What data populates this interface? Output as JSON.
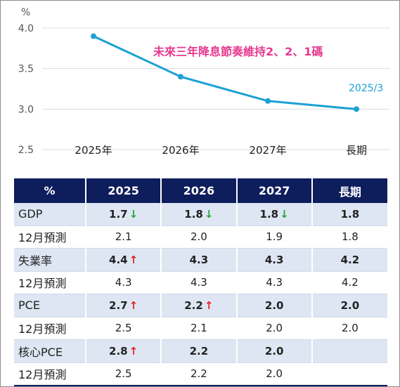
{
  "chart_data": {
    "type": "line",
    "ylabel": "%",
    "ylim": [
      2.5,
      4.0
    ],
    "yticks": [
      "4.0",
      "3.5",
      "3.0",
      "2.5"
    ],
    "categories": [
      "2025年",
      "2026年",
      "2027年",
      "長期"
    ],
    "series": [
      {
        "values": [
          3.9,
          3.4,
          3.1,
          3.0
        ]
      }
    ],
    "annotation": "未來三年降息節奏維持2、2、1碼",
    "end_label": "2025/3",
    "colors": {
      "line": "#1ba1d3",
      "grid": "#dddddd"
    }
  },
  "table": {
    "headers": [
      "%",
      "2025",
      "2026",
      "2027",
      "長期"
    ],
    "rows": [
      {
        "label": "GDP",
        "bold": true,
        "shade": true,
        "cells": [
          {
            "v": "1.7",
            "arrow": "↓",
            "dir": "down"
          },
          {
            "v": "1.8",
            "arrow": "↓",
            "dir": "down"
          },
          {
            "v": "1.8",
            "arrow": "↓",
            "dir": "down"
          },
          {
            "v": "1.8"
          }
        ]
      },
      {
        "label": "12月預測",
        "bold": false,
        "shade": false,
        "cells": [
          {
            "v": "2.1"
          },
          {
            "v": "2.0"
          },
          {
            "v": "1.9"
          },
          {
            "v": "1.8"
          }
        ]
      },
      {
        "label": "失業率",
        "bold": true,
        "shade": true,
        "cells": [
          {
            "v": "4.4",
            "arrow": "↑",
            "dir": "up"
          },
          {
            "v": "4.3"
          },
          {
            "v": "4.3"
          },
          {
            "v": "4.2"
          }
        ]
      },
      {
        "label": "12月預測",
        "bold": false,
        "shade": false,
        "cells": [
          {
            "v": "4.3"
          },
          {
            "v": "4.3"
          },
          {
            "v": "4.3"
          },
          {
            "v": "4.2"
          }
        ]
      },
      {
        "label": "PCE",
        "bold": true,
        "shade": true,
        "cells": [
          {
            "v": "2.7",
            "arrow": "↑",
            "dir": "up"
          },
          {
            "v": "2.2",
            "arrow": "↑",
            "dir": "up"
          },
          {
            "v": "2.0"
          },
          {
            "v": "2.0"
          }
        ]
      },
      {
        "label": "12月預測",
        "bold": false,
        "shade": false,
        "cells": [
          {
            "v": "2.5"
          },
          {
            "v": "2.1"
          },
          {
            "v": "2.0"
          },
          {
            "v": "2.0"
          }
        ]
      },
      {
        "label": "核心PCE",
        "bold": true,
        "shade": true,
        "cells": [
          {
            "v": "2.8",
            "arrow": "↑",
            "dir": "up"
          },
          {
            "v": "2.2"
          },
          {
            "v": "2.0"
          },
          {
            "v": ""
          }
        ]
      },
      {
        "label": "12月預測",
        "bold": false,
        "shade": false,
        "cells": [
          {
            "v": "2.5"
          },
          {
            "v": "2.2"
          },
          {
            "v": "2.0"
          },
          {
            "v": ""
          }
        ]
      }
    ]
  }
}
